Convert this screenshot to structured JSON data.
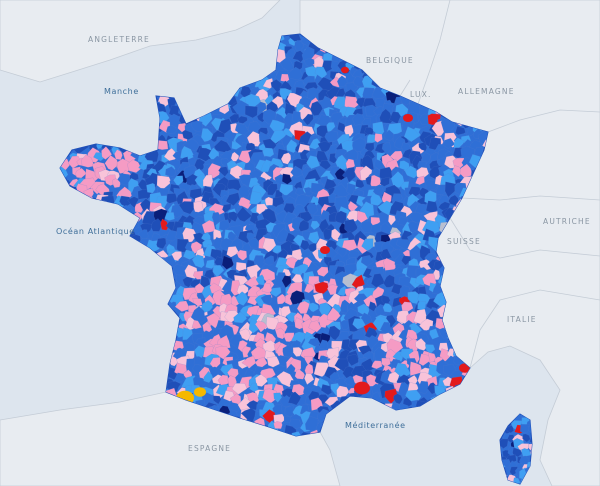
{
  "map": {
    "countries": {
      "angleterre": "ANGLETERRE",
      "belgique": "BELGIQUE",
      "lux": "LUX.",
      "allemagne": "ALLEMAGNE",
      "autriche": "AUTRICHE",
      "suisse": "SUISSE",
      "italie": "ITALIE",
      "espagne": "ESPAGNE"
    },
    "seas": {
      "manche": "Manche",
      "atlantique": "Océan Atlantique",
      "mediterranee": "Méditerranée"
    },
    "colors": {
      "sea": "#dde5ee",
      "land_neighbor": "#e8ecf1",
      "border": "#c4ccd6",
      "blue_dark": "#1f4fb8",
      "blue_mid": "#2f6fd6",
      "blue_light": "#3f9ff2",
      "pink": "#f59bc4",
      "pink_light": "#f8c3d9",
      "red": "#e31a1c",
      "navy": "#0a1f7a",
      "grey": "#b8bfd0",
      "yellow": "#f5b800"
    }
  }
}
